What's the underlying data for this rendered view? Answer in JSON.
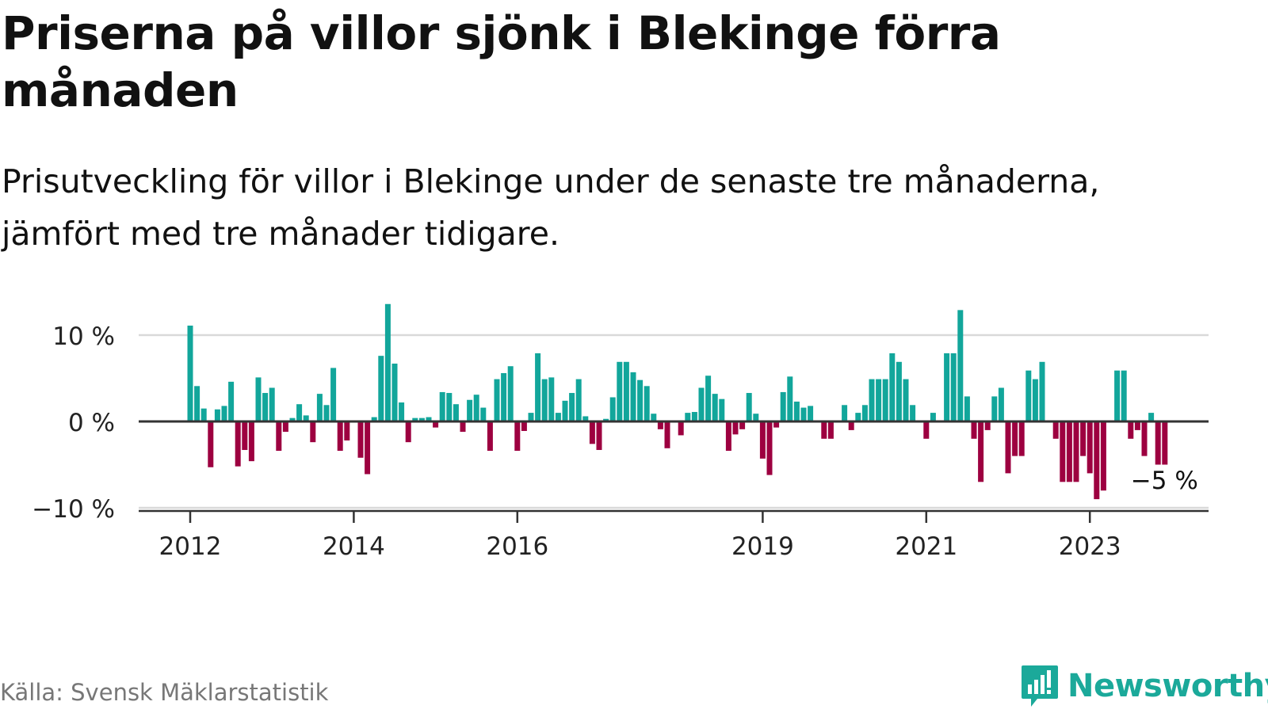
{
  "title": "Priserna på villor sjönk i Blekinge förra månaden",
  "subtitle": "Prisutveckling för villor i Blekinge under de senaste tre månaderna, jämfört med tre månader tidigare.",
  "source": "Källa: Svensk Mäklarstatistik",
  "brand": {
    "name": "Newsworthy",
    "color": "#1ba99a",
    "icon": "newsworthy-chart-bubble-icon"
  },
  "colors": {
    "positive": "#12a69b",
    "negative": "#9d0040",
    "axis": "#333333",
    "grid": "#d9d9d9"
  },
  "chart_data": {
    "type": "bar",
    "ylabel": "",
    "xlabel": "",
    "ylim": [
      -10.5,
      13.5
    ],
    "y_ticks": [
      {
        "value": 10,
        "label": "10 %"
      },
      {
        "value": 0,
        "label": "0 %"
      },
      {
        "value": -10,
        "label": "−10 %"
      }
    ],
    "x_ticks": [
      {
        "index": 0,
        "label": "2012"
      },
      {
        "index": 24,
        "label": "2014"
      },
      {
        "index": 48,
        "label": "2016"
      },
      {
        "index": 84,
        "label": "2019"
      },
      {
        "index": 108,
        "label": "2021"
      },
      {
        "index": 132,
        "label": "2023"
      }
    ],
    "grid": true,
    "annotation": {
      "index": 143,
      "label": "−5 %"
    },
    "start": "2012-01",
    "values": [
      11.1,
      4.1,
      1.5,
      -5.3,
      1.4,
      1.8,
      4.6,
      -5.2,
      -3.3,
      -4.6,
      5.1,
      3.3,
      3.9,
      -3.4,
      -1.2,
      0.4,
      2.0,
      0.7,
      -2.4,
      3.2,
      1.9,
      6.2,
      -3.4,
      -2.2,
      0.0,
      -4.2,
      -6.1,
      0.5,
      7.6,
      13.6,
      6.7,
      2.2,
      -2.4,
      0.4,
      0.4,
      0.5,
      -0.7,
      3.4,
      3.3,
      2.0,
      -1.2,
      2.5,
      3.1,
      1.6,
      -3.4,
      4.9,
      5.6,
      6.4,
      -3.4,
      -1.1,
      1.0,
      7.9,
      4.9,
      5.1,
      1.0,
      2.4,
      3.3,
      4.9,
      0.6,
      -2.6,
      -3.3,
      0.3,
      2.8,
      6.9,
      6.9,
      5.7,
      4.8,
      4.1,
      0.9,
      -0.9,
      -3.1,
      0.0,
      -1.6,
      1.0,
      1.1,
      3.9,
      5.3,
      3.2,
      2.6,
      -3.4,
      -1.5,
      -0.9,
      3.3,
      0.9,
      -4.3,
      -6.2,
      -0.7,
      3.4,
      5.2,
      2.3,
      1.6,
      1.8,
      0.0,
      -2.0,
      -2.0,
      0.0,
      1.9,
      -1.0,
      1.0,
      1.9,
      4.9,
      4.9,
      4.9,
      7.9,
      6.9,
      4.9,
      1.9,
      0.0,
      -2.0,
      1.0,
      0.0,
      7.9,
      7.9,
      12.9,
      2.9,
      -2.0,
      -7.0,
      -1.0,
      2.9,
      3.9,
      -6.0,
      -4.0,
      -4.0,
      5.9,
      4.9,
      6.9,
      0.0,
      -2.0,
      -7.0,
      -7.0,
      -7.0,
      -4.0,
      -6.0,
      -9.0,
      -8.0,
      0.0,
      5.9,
      5.9,
      -2.0,
      -1.0,
      -4.0,
      1.0,
      -5.0,
      -5.0
    ]
  }
}
